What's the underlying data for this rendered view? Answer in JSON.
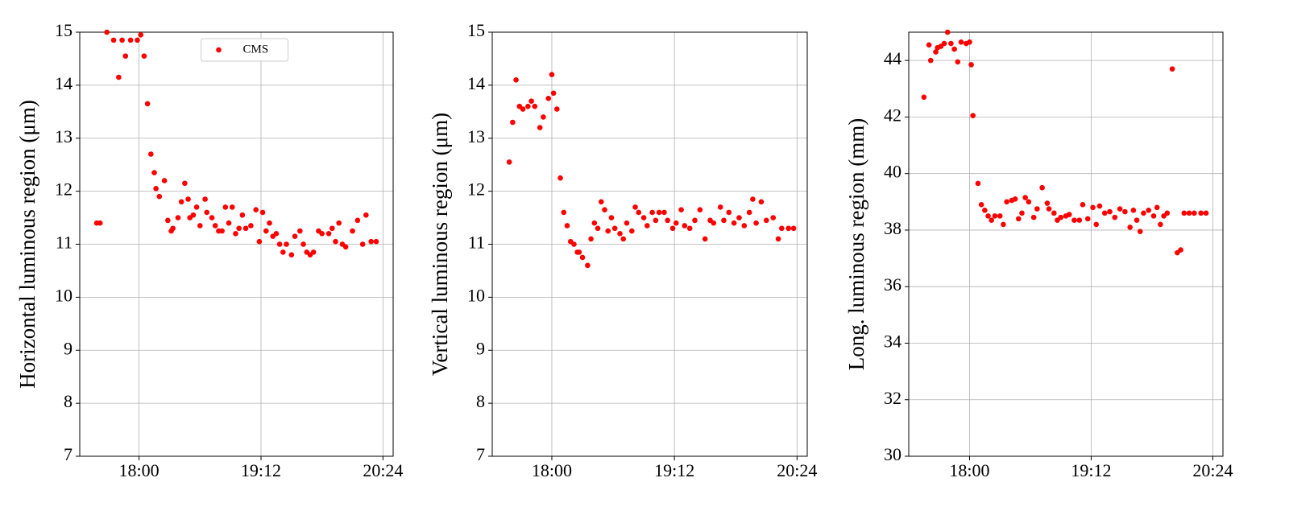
{
  "chart_data": [
    {
      "type": "scatter",
      "ylabel": "Horizontal luminous region (μm)",
      "grid": true,
      "legend": "upper center",
      "xlim": [
        1045,
        1230
      ],
      "ylim": [
        7,
        15
      ],
      "xticks": [
        {
          "value": 1080,
          "label": "18:00"
        },
        {
          "value": 1152,
          "label": "19:12"
        },
        {
          "value": 1224,
          "label": "20:24"
        }
      ],
      "yticks": [
        7,
        8,
        9,
        10,
        11,
        12,
        13,
        14,
        15
      ],
      "series": [
        {
          "name": "CMS",
          "color": "#ff0000",
          "x": [
            1055,
            1057,
            1061,
            1065,
            1068,
            1070,
            1072,
            1075,
            1079,
            1081,
            1083,
            1085,
            1087,
            1089,
            1090,
            1092,
            1095,
            1097,
            1099,
            1100,
            1103,
            1105,
            1107,
            1109,
            1110,
            1112,
            1114,
            1116,
            1119,
            1120,
            1123,
            1125,
            1127,
            1129,
            1131,
            1133,
            1135,
            1137,
            1139,
            1141,
            1143,
            1146,
            1149,
            1151,
            1153,
            1155,
            1157,
            1159,
            1161,
            1163,
            1165,
            1167,
            1170,
            1172,
            1175,
            1177,
            1179,
            1181,
            1183,
            1186,
            1188,
            1192,
            1194,
            1196,
            1198,
            1200,
            1202,
            1206,
            1209,
            1212,
            1214,
            1217,
            1220
          ],
          "values": [
            11.4,
            11.4,
            15.0,
            14.85,
            14.15,
            14.85,
            14.55,
            14.85,
            14.85,
            14.95,
            14.55,
            13.65,
            12.7,
            12.35,
            12.05,
            11.9,
            12.2,
            11.45,
            11.25,
            11.3,
            11.5,
            11.8,
            12.15,
            11.85,
            11.5,
            11.55,
            11.7,
            11.35,
            11.85,
            11.6,
            11.5,
            11.35,
            11.25,
            11.25,
            11.7,
            11.4,
            11.7,
            11.2,
            11.3,
            11.55,
            11.3,
            11.35,
            11.65,
            11.05,
            11.6,
            11.25,
            11.4,
            11.15,
            11.2,
            11.0,
            10.85,
            11.0,
            10.8,
            11.15,
            11.25,
            11.0,
            10.85,
            10.8,
            10.85,
            11.25,
            11.2,
            11.2,
            11.3,
            11.05,
            11.4,
            11.0,
            10.95,
            11.25,
            11.45,
            11.0,
            11.55,
            11.05,
            11.05
          ]
        }
      ]
    },
    {
      "type": "scatter",
      "ylabel": "Vertical luminous region (μm)",
      "grid": true,
      "xlim": [
        1045,
        1230
      ],
      "ylim": [
        7,
        15
      ],
      "xticks": [
        {
          "value": 1080,
          "label": "18:00"
        },
        {
          "value": 1152,
          "label": "19:12"
        },
        {
          "value": 1224,
          "label": "20:24"
        }
      ],
      "yticks": [
        7,
        8,
        9,
        10,
        11,
        12,
        13,
        14,
        15
      ],
      "series": [
        {
          "color": "#ff0000",
          "x": [
            1055,
            1057,
            1059,
            1061,
            1063,
            1066,
            1068,
            1070,
            1073,
            1075,
            1078,
            1080,
            1081,
            1083,
            1085,
            1087,
            1089,
            1091,
            1093,
            1095,
            1096,
            1098,
            1101,
            1103,
            1105,
            1107,
            1109,
            1111,
            1113,
            1115,
            1117,
            1120,
            1122,
            1124,
            1127,
            1129,
            1131,
            1134,
            1136,
            1139,
            1141,
            1143,
            1146,
            1148,
            1151,
            1153,
            1156,
            1158,
            1161,
            1164,
            1167,
            1170,
            1173,
            1175,
            1179,
            1181,
            1184,
            1187,
            1190,
            1193,
            1196,
            1198,
            1200,
            1203,
            1206,
            1210,
            1213,
            1215,
            1219,
            1222
          ],
          "values": [
            12.55,
            13.3,
            14.1,
            13.6,
            13.55,
            13.6,
            13.7,
            13.6,
            13.2,
            13.4,
            13.75,
            14.2,
            13.85,
            13.55,
            12.25,
            11.6,
            11.35,
            11.05,
            11.0,
            10.85,
            10.85,
            10.75,
            10.6,
            11.1,
            11.4,
            11.3,
            11.8,
            11.65,
            11.25,
            11.5,
            11.3,
            11.2,
            11.1,
            11.4,
            11.25,
            11.7,
            11.6,
            11.5,
            11.35,
            11.6,
            11.45,
            11.6,
            11.6,
            11.45,
            11.3,
            11.4,
            11.65,
            11.35,
            11.3,
            11.45,
            11.65,
            11.1,
            11.45,
            11.4,
            11.7,
            11.45,
            11.6,
            11.4,
            11.5,
            11.35,
            11.6,
            11.85,
            11.4,
            11.8,
            11.45,
            11.5,
            11.1,
            11.3,
            11.3,
            11.3
          ]
        }
      ]
    },
    {
      "type": "scatter",
      "ylabel": "Long. luminous region (mm)",
      "grid": true,
      "xlim": [
        1044,
        1230
      ],
      "ylim": [
        30,
        45
      ],
      "xticks": [
        {
          "value": 1080,
          "label": "18:00"
        },
        {
          "value": 1152,
          "label": "19:12"
        },
        {
          "value": 1224,
          "label": "20:24"
        }
      ],
      "yticks": [
        30,
        32,
        34,
        36,
        38,
        40,
        42,
        44
      ],
      "series": [
        {
          "color": "#ff0000",
          "x": [
            1053,
            1056,
            1057,
            1060,
            1061,
            1063,
            1065,
            1067,
            1069,
            1071,
            1073,
            1075,
            1078,
            1080,
            1081,
            1082,
            1085,
            1087,
            1089,
            1091,
            1093,
            1095,
            1098,
            1100,
            1102,
            1105,
            1107,
            1109,
            1111,
            1113,
            1115,
            1118,
            1120,
            1123,
            1126,
            1127,
            1130,
            1132,
            1134,
            1137,
            1139,
            1142,
            1145,
            1147,
            1150,
            1153,
            1155,
            1157,
            1160,
            1163,
            1166,
            1169,
            1172,
            1175,
            1177,
            1179,
            1181,
            1183,
            1186,
            1189,
            1191,
            1193,
            1195,
            1197,
            1200,
            1203,
            1205,
            1207,
            1210,
            1213,
            1217,
            1220
          ],
          "values": [
            42.7,
            44.55,
            44.0,
            44.3,
            44.45,
            44.5,
            44.6,
            45.0,
            44.6,
            44.4,
            43.95,
            44.65,
            44.6,
            44.65,
            43.85,
            42.05,
            39.65,
            38.9,
            38.7,
            38.5,
            38.35,
            38.5,
            38.5,
            38.2,
            39.0,
            39.05,
            39.1,
            38.4,
            38.6,
            39.15,
            39.0,
            38.45,
            38.75,
            39.5,
            38.95,
            38.75,
            38.6,
            38.35,
            38.45,
            38.5,
            38.55,
            38.35,
            38.35,
            38.9,
            38.4,
            38.8,
            38.2,
            38.85,
            38.6,
            38.65,
            38.45,
            38.75,
            38.65,
            38.1,
            38.7,
            38.35,
            37.95,
            38.6,
            38.7,
            38.5,
            38.8,
            38.2,
            38.5,
            38.6,
            43.7,
            37.2,
            37.3,
            38.6,
            38.6,
            38.6,
            38.6,
            38.6
          ]
        }
      ]
    }
  ]
}
